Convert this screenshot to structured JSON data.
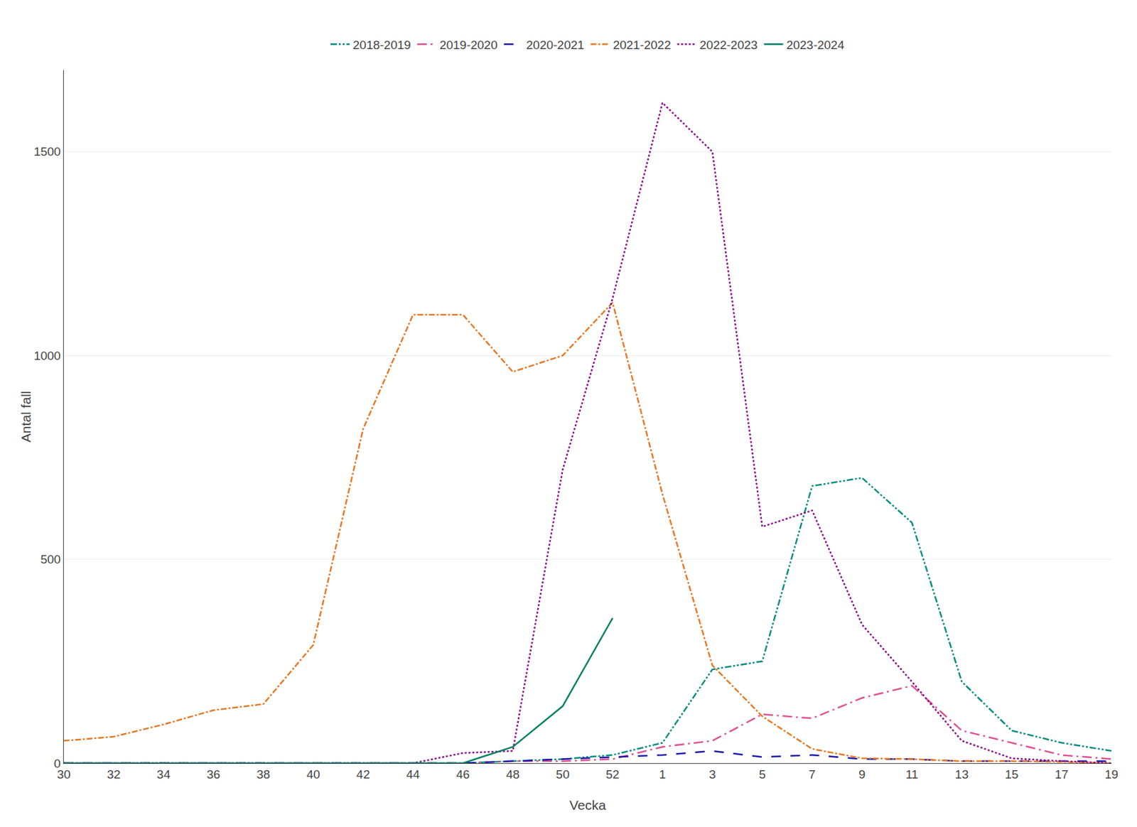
{
  "chart_data": {
    "type": "line",
    "xlabel": "Vecka",
    "ylabel": "Antal fall",
    "categories": [
      "30",
      "32",
      "34",
      "36",
      "38",
      "40",
      "42",
      "44",
      "46",
      "48",
      "50",
      "52",
      "1",
      "3",
      "5",
      "7",
      "9",
      "11",
      "13",
      "15",
      "17",
      "19"
    ],
    "series": [
      {
        "name": "2018-2019",
        "color": "#008B80",
        "line_style": "dashdotdot",
        "values": [
          0,
          0,
          0,
          0,
          0,
          0,
          0,
          0,
          0,
          5,
          10,
          20,
          50,
          230,
          250,
          680,
          700,
          590,
          200,
          80,
          50,
          30
        ]
      },
      {
        "name": "2019-2020",
        "color": "#e05090",
        "line_style": "longdashdot",
        "values": [
          0,
          0,
          0,
          0,
          0,
          0,
          0,
          0,
          0,
          5,
          5,
          10,
          40,
          55,
          120,
          110,
          160,
          190,
          80,
          50,
          20,
          10
        ]
      },
      {
        "name": "2020-2021",
        "color": "#1a1aaa",
        "line_style": "longdash",
        "values": [
          0,
          0,
          0,
          0,
          0,
          0,
          0,
          0,
          0,
          5,
          10,
          15,
          20,
          30,
          15,
          20,
          10,
          10,
          5,
          5,
          5,
          5
        ]
      },
      {
        "name": "2021-2022",
        "color": "#e87722",
        "line_style": "dashdot",
        "values": [
          55,
          65,
          95,
          130,
          145,
          290,
          820,
          1100,
          1100,
          960,
          1000,
          1130,
          660,
          240,
          115,
          35,
          12,
          10,
          5,
          5,
          3,
          0
        ]
      },
      {
        "name": "2022-2023",
        "color": "#8B008B",
        "line_style": "dotted",
        "values": [
          0,
          0,
          0,
          0,
          0,
          0,
          0,
          0,
          25,
          30,
          720,
          1140,
          1620,
          1500,
          580,
          620,
          340,
          200,
          55,
          12,
          5,
          0
        ]
      },
      {
        "name": "2023-2024",
        "color": "#008060",
        "line_style": "solid",
        "values": [
          0,
          0,
          0,
          0,
          0,
          0,
          0,
          0,
          0,
          40,
          140,
          356,
          null,
          null,
          null,
          null,
          null,
          null,
          null,
          null,
          null,
          null
        ]
      }
    ],
    "ylim": [
      0,
      1700
    ],
    "yticks": [
      0,
      500,
      1000,
      1500
    ],
    "grid": true,
    "legend": "top"
  }
}
